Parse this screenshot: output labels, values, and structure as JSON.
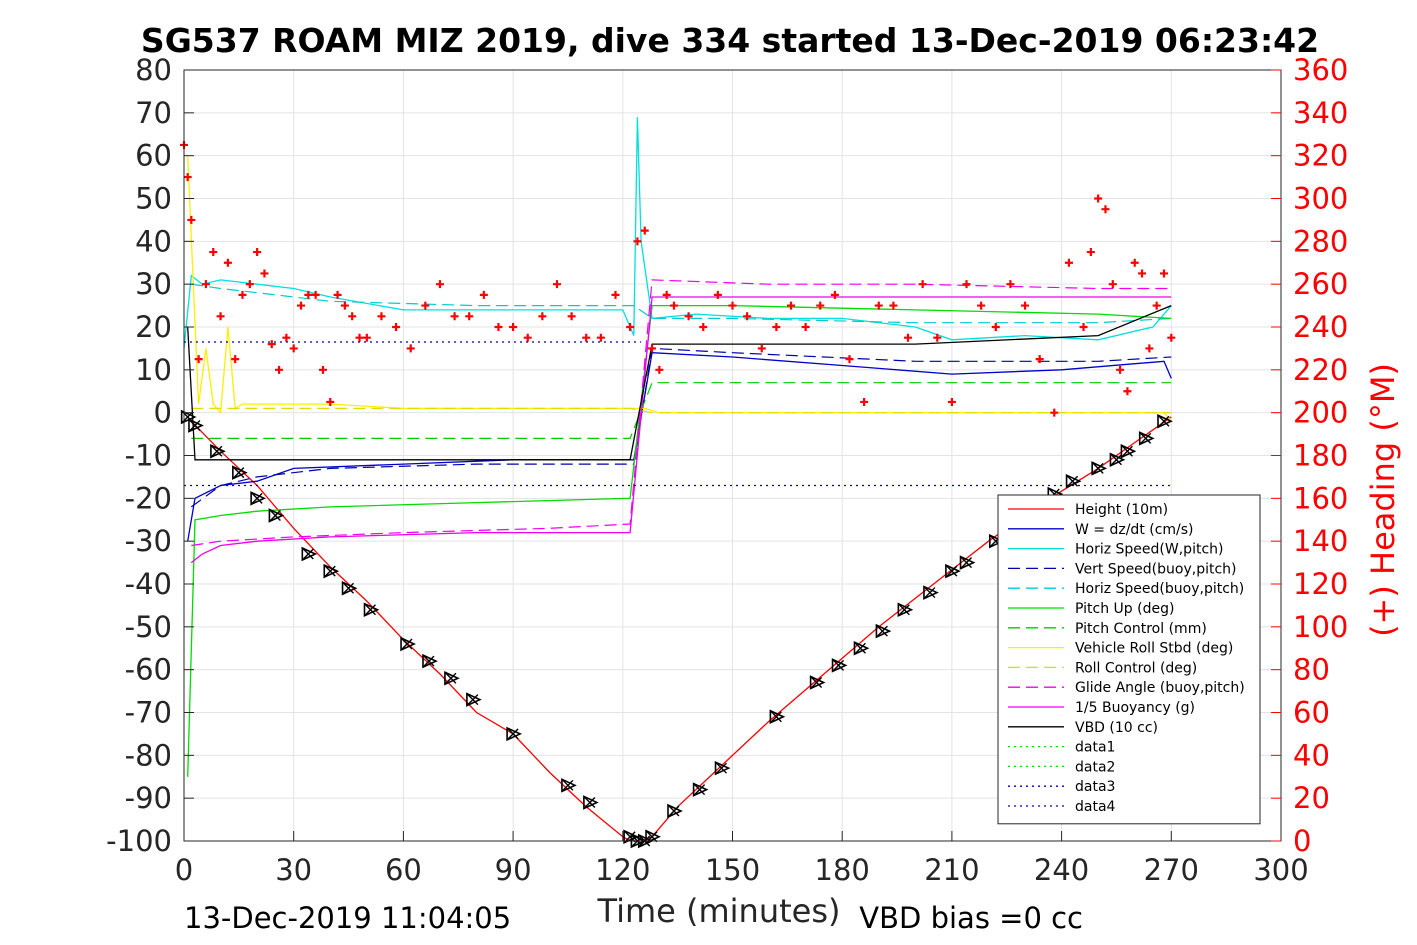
{
  "chart_data": {
    "type": "line",
    "title": "SG537 ROAM MIZ 2019, dive 334 started 13-Dec-2019 06:23:42",
    "xlabel": "Time (minutes)",
    "ylabel": "",
    "y2label": "(+) Heading (°M)",
    "xlim": [
      0,
      300
    ],
    "ylim": [
      -100,
      80
    ],
    "y2lim": [
      0,
      360
    ],
    "grid": true,
    "legend_position": "lower-right",
    "x_ticks": [
      "0",
      "30",
      "60",
      "90",
      "120",
      "150",
      "180",
      "210",
      "240",
      "270",
      "300"
    ],
    "y_ticks": [
      "80",
      "70",
      "60",
      "50",
      "40",
      "30",
      "20",
      "10",
      "0",
      "-10",
      "-20",
      "-30",
      "-40",
      "-50",
      "-60",
      "-70",
      "-80",
      "-90",
      "-100"
    ],
    "y2_ticks": [
      "360",
      "340",
      "320",
      "300",
      "280",
      "260",
      "240",
      "220",
      "200",
      "180",
      "160",
      "140",
      "120",
      "100",
      "80",
      "60",
      "40",
      "20",
      "0"
    ],
    "footer_left": "13-Dec-2019 11:04:05",
    "footer_right": "VBD bias =0 cc",
    "series": [
      {
        "name": "Height (10m)",
        "color": "#ff0000",
        "style": "solid",
        "x": [
          0,
          2,
          10,
          20,
          30,
          40,
          50,
          60,
          70,
          80,
          90,
          100,
          110,
          120,
          122,
          125,
          128,
          135,
          145,
          160,
          175,
          190,
          205,
          220,
          235,
          250,
          260,
          265,
          270
        ],
        "y": [
          0,
          -2,
          -9,
          -17,
          -27,
          -36,
          -44,
          -53,
          -61,
          -70,
          -75,
          -84,
          -92,
          -99,
          -100,
          -100,
          -99,
          -92,
          -84,
          -72,
          -61,
          -50,
          -40,
          -30,
          -21,
          -13,
          -7,
          -4,
          -1
        ]
      },
      {
        "name": "W = dz/dt (cm/s)",
        "color": "#0000cc",
        "style": "solid",
        "x": [
          1,
          3,
          10,
          20,
          30,
          60,
          90,
          120,
          123,
          128,
          150,
          180,
          210,
          240,
          268,
          270
        ],
        "y": [
          -30,
          -20,
          -17,
          -16,
          -13,
          -12,
          -11,
          -11,
          -11,
          14,
          13,
          11,
          9,
          10,
          12,
          8
        ]
      },
      {
        "name": "Horiz Speed(W,pitch)",
        "color": "#00e0e0",
        "style": "solid",
        "x": [
          0,
          2,
          5,
          10,
          20,
          30,
          40,
          60,
          80,
          100,
          120,
          123,
          124,
          125,
          128,
          140,
          160,
          180,
          200,
          210,
          230,
          250,
          265,
          270
        ],
        "y": [
          15,
          32,
          30,
          31,
          30,
          29,
          27,
          24,
          24,
          24,
          24,
          18,
          69,
          40,
          22,
          23,
          22,
          22,
          20,
          17,
          18,
          17,
          20,
          25
        ]
      },
      {
        "name": "Vert Speed(buoy,pitch)",
        "color": "#0000aa",
        "style": "dash",
        "x": [
          2,
          10,
          20,
          40,
          80,
          120,
          123,
          128,
          150,
          200,
          250,
          270
        ],
        "y": [
          -22,
          -17,
          -15,
          -13,
          -12,
          -12,
          -12,
          15,
          14,
          12,
          12,
          13
        ]
      },
      {
        "name": "Horiz Speed(buoy,pitch)",
        "color": "#00cccc",
        "style": "dash",
        "x": [
          2,
          10,
          20,
          40,
          80,
          120,
          123,
          128,
          150,
          200,
          250,
          270
        ],
        "y": [
          30,
          29,
          28,
          26,
          25,
          25,
          25,
          22,
          22,
          21,
          21,
          22
        ]
      },
      {
        "name": "Pitch Up (deg)",
        "color": "#00dd00",
        "style": "solid",
        "x": [
          1,
          3,
          10,
          20,
          40,
          80,
          122,
          128,
          150,
          200,
          250,
          270
        ],
        "y": [
          -85,
          -25,
          -24,
          -23,
          -22,
          -21,
          -20,
          25,
          25,
          24,
          23,
          22
        ]
      },
      {
        "name": "Pitch Control (mm)",
        "color": "#00cc00",
        "style": "dash",
        "x": [
          2,
          10,
          50,
          100,
          122,
          128,
          160,
          200,
          250,
          270
        ],
        "y": [
          -6,
          -6,
          -6,
          -6,
          -6,
          7,
          7,
          7,
          7,
          7
        ]
      },
      {
        "name": "Vehicle Roll Stbd (deg)",
        "color": "#ffee00",
        "style": "solid",
        "x": [
          1,
          4,
          6,
          8,
          10,
          12,
          14,
          16,
          40,
          60,
          80,
          100,
          120,
          122,
          126,
          130,
          160,
          200,
          240,
          268,
          270
        ],
        "y": [
          60,
          2,
          15,
          2,
          0,
          20,
          1,
          2,
          2,
          1,
          1,
          1,
          1,
          1,
          1,
          0,
          0,
          0,
          0,
          0,
          -2
        ]
      },
      {
        "name": "Roll Control (deg)",
        "color": "#dddd00",
        "style": "dash",
        "x": [
          2,
          50,
          122,
          128,
          200,
          270
        ],
        "y": [
          1,
          1,
          1,
          0,
          0,
          0
        ]
      },
      {
        "name": "Glide Angle (buoy,pitch)",
        "color": "#ee00ee",
        "style": "dash",
        "x": [
          2,
          10,
          30,
          60,
          100,
          122,
          128,
          160,
          200,
          250,
          270
        ],
        "y": [
          -31,
          -30,
          -29,
          -28,
          -27,
          -26,
          31,
          30,
          30,
          29,
          29
        ]
      },
      {
        "name": "1/5 Buoyancy (g)",
        "color": "#ee00ee",
        "style": "solid",
        "x": [
          2,
          5,
          10,
          20,
          40,
          80,
          122,
          128,
          160,
          200,
          250,
          270
        ],
        "y": [
          -35,
          -33,
          -31,
          -30,
          -29,
          -28,
          -28,
          27,
          27,
          27,
          27,
          27
        ]
      },
      {
        "name": "VBD (10 cc)",
        "color": "#000000",
        "style": "solid",
        "x": [
          1,
          3,
          122,
          128,
          200,
          250,
          270
        ],
        "y": [
          20,
          -11,
          -11,
          16,
          16,
          18,
          25
        ]
      },
      {
        "name": "data1",
        "color": "#00dd00",
        "style": "dot",
        "x": [],
        "y": []
      },
      {
        "name": "data2",
        "color": "#00dd00",
        "style": "dot",
        "x": [],
        "y": []
      },
      {
        "name": "data3",
        "color": "#000099",
        "style": "dot",
        "x": [
          0,
          125
        ],
        "y": [
          16.5,
          16.5
        ]
      },
      {
        "name": "data4",
        "color": "#0000aa",
        "style": "dot",
        "x": [
          0,
          270
        ],
        "y": [
          -17,
          -17
        ]
      }
    ],
    "heading_series": {
      "axis": "right",
      "color": "#ff0000",
      "marker": "+",
      "x": [
        0,
        1,
        2,
        4,
        6,
        8,
        10,
        12,
        14,
        16,
        18,
        20,
        22,
        24,
        26,
        28,
        30,
        32,
        34,
        36,
        38,
        40,
        42,
        44,
        46,
        48,
        50,
        54,
        58,
        62,
        66,
        70,
        74,
        78,
        82,
        86,
        90,
        94,
        98,
        102,
        106,
        110,
        114,
        118,
        122,
        124,
        126,
        128,
        130,
        132,
        134,
        138,
        142,
        146,
        150,
        154,
        158,
        162,
        166,
        170,
        174,
        178,
        182,
        186,
        190,
        194,
        198,
        202,
        206,
        210,
        214,
        218,
        222,
        226,
        230,
        234,
        238,
        242,
        246,
        248,
        250,
        252,
        254,
        256,
        258,
        260,
        262,
        264,
        266,
        268,
        270
      ],
      "y": [
        325,
        310,
        290,
        225,
        260,
        275,
        245,
        270,
        225,
        255,
        260,
        275,
        265,
        232,
        220,
        235,
        230,
        250,
        255,
        255,
        220,
        205,
        255,
        250,
        245,
        235,
        235,
        245,
        240,
        230,
        250,
        260,
        245,
        245,
        255,
        240,
        240,
        235,
        245,
        260,
        245,
        235,
        235,
        255,
        240,
        280,
        285,
        230,
        220,
        255,
        250,
        245,
        240,
        255,
        250,
        245,
        230,
        240,
        250,
        240,
        250,
        255,
        225,
        205,
        250,
        250,
        235,
        260,
        235,
        205,
        260,
        250,
        240,
        260,
        250,
        225,
        200,
        270,
        240,
        275,
        300,
        295,
        260,
        220,
        210,
        270,
        265,
        230,
        250,
        265,
        235
      ]
    },
    "depth_markers": {
      "marker": "triangle-x",
      "color": "#000000",
      "x": [
        1,
        3,
        9,
        15,
        20,
        25,
        34,
        40,
        45,
        51,
        61,
        67,
        73,
        79,
        90,
        105,
        111,
        122,
        124,
        126,
        128,
        134,
        141,
        147,
        162,
        173,
        179,
        185,
        191,
        197,
        204,
        210,
        214,
        222,
        232,
        238,
        243,
        250,
        255,
        258,
        263,
        268
      ],
      "y": [
        -1,
        -3,
        -9,
        -14,
        -20,
        -24,
        -33,
        -37,
        -41,
        -46,
        -54,
        -58,
        -62,
        -67,
        -75,
        -87,
        -91,
        -99,
        -100,
        -100,
        -99,
        -93,
        -88,
        -83,
        -71,
        -63,
        -59,
        -55,
        -51,
        -46,
        -42,
        -37,
        -35,
        -30,
        -23,
        -19,
        -16,
        -13,
        -11,
        -9,
        -6,
        -2
      ]
    }
  }
}
